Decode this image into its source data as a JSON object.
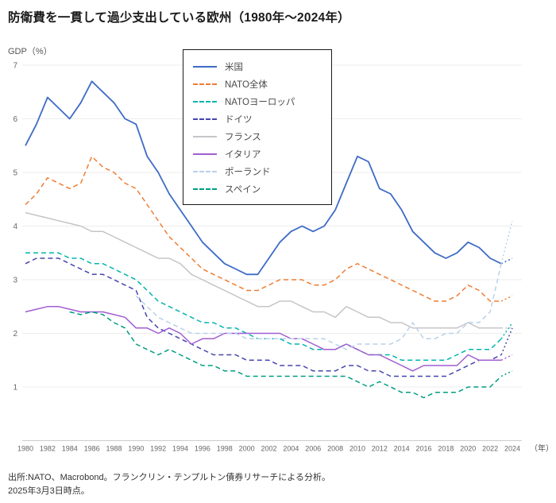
{
  "page": {
    "title": "防衛費を一貫して過少支出している欧州（1980年～2024年）",
    "y_axis_unit_label": "GDP（%）",
    "x_axis_unit_label": "（年）",
    "source_line1": "出所:NATO、Macrobond。フランクリン・テンプルトン債券リサーチによる分析。",
    "source_line2": "2025年3月3日時点。"
  },
  "chart_data": {
    "type": "line",
    "title": "防衛費を一貫して過少支出している欧州（1980年～2024年）",
    "xlabel": "（年）",
    "ylabel": "GDP（%）",
    "ylim": [
      0,
      7
    ],
    "grid": true,
    "legend_position": "top-center-box",
    "y_ticks": [
      1,
      2,
      3,
      4,
      5,
      6,
      7
    ],
    "x_ticks": [
      1980,
      1982,
      1984,
      1986,
      1988,
      1990,
      1992,
      1994,
      1996,
      1998,
      2000,
      2002,
      2004,
      2006,
      2008,
      2010,
      2012,
      2014,
      2016,
      2018,
      2020,
      2022,
      2024
    ],
    "x": [
      1980,
      1981,
      1982,
      1983,
      1984,
      1985,
      1986,
      1987,
      1988,
      1989,
      1990,
      1991,
      1992,
      1993,
      1994,
      1995,
      1996,
      1997,
      1998,
      1999,
      2000,
      2001,
      2002,
      2003,
      2004,
      2005,
      2006,
      2007,
      2008,
      2009,
      2010,
      2011,
      2012,
      2013,
      2014,
      2015,
      2016,
      2017,
      2018,
      2019,
      2020,
      2021,
      2022,
      2023,
      2024
    ],
    "note": "最終区間（2023年→2024年）は点線（推定値）",
    "series": [
      {
        "id": "us",
        "name": "米国",
        "color": "#3d6bc6",
        "style": "solid",
        "values": [
          5.5,
          5.9,
          6.4,
          6.2,
          6.0,
          6.3,
          6.7,
          6.5,
          6.3,
          6.0,
          5.9,
          5.3,
          5.0,
          4.6,
          4.3,
          4.0,
          3.7,
          3.5,
          3.3,
          3.2,
          3.1,
          3.1,
          3.4,
          3.7,
          3.9,
          4.0,
          3.9,
          4.0,
          4.3,
          4.8,
          5.3,
          5.2,
          4.7,
          4.6,
          4.3,
          3.9,
          3.7,
          3.5,
          3.4,
          3.5,
          3.7,
          3.6,
          3.4,
          3.3,
          3.4
        ]
      },
      {
        "id": "nato-total",
        "name": "NATO全体",
        "color": "#ee7d33",
        "style": "dashed",
        "values": [
          4.4,
          4.6,
          4.9,
          4.8,
          4.7,
          4.8,
          5.3,
          5.1,
          5.0,
          4.8,
          4.7,
          4.4,
          4.1,
          3.8,
          3.6,
          3.4,
          3.2,
          3.1,
          3.0,
          2.9,
          2.8,
          2.8,
          2.9,
          3.0,
          3.0,
          3.0,
          2.9,
          2.9,
          3.0,
          3.2,
          3.3,
          3.2,
          3.1,
          3.0,
          2.9,
          2.8,
          2.7,
          2.6,
          2.6,
          2.7,
          2.9,
          2.8,
          2.6,
          2.6,
          2.7
        ]
      },
      {
        "id": "nato-europe",
        "name": "NATOヨーロッパ",
        "color": "#00b5ad",
        "style": "dashed",
        "values": [
          3.5,
          3.5,
          3.5,
          3.5,
          3.4,
          3.4,
          3.3,
          3.3,
          3.2,
          3.1,
          3.0,
          2.8,
          2.6,
          2.5,
          2.4,
          2.3,
          2.2,
          2.2,
          2.1,
          2.1,
          2.0,
          1.9,
          1.9,
          1.9,
          1.8,
          1.8,
          1.7,
          1.7,
          1.7,
          1.8,
          1.7,
          1.6,
          1.6,
          1.6,
          1.5,
          1.5,
          1.5,
          1.5,
          1.5,
          1.6,
          1.7,
          1.7,
          1.7,
          1.9,
          2.2
        ]
      },
      {
        "id": "germany",
        "name": "ドイツ",
        "color": "#4745ae",
        "style": "dashed",
        "values": [
          3.3,
          3.4,
          3.4,
          3.4,
          3.3,
          3.2,
          3.1,
          3.1,
          3.0,
          2.9,
          2.8,
          2.3,
          2.1,
          2.0,
          1.9,
          1.8,
          1.7,
          1.6,
          1.6,
          1.6,
          1.5,
          1.5,
          1.5,
          1.4,
          1.4,
          1.4,
          1.3,
          1.3,
          1.3,
          1.4,
          1.4,
          1.3,
          1.3,
          1.2,
          1.2,
          1.2,
          1.2,
          1.2,
          1.2,
          1.3,
          1.4,
          1.5,
          1.5,
          1.6,
          2.1
        ]
      },
      {
        "id": "france",
        "name": "フランス",
        "color": "#c5c5c9",
        "style": "solid",
        "values": [
          4.25,
          4.2,
          4.15,
          4.1,
          4.05,
          4.0,
          3.9,
          3.9,
          3.8,
          3.7,
          3.6,
          3.5,
          3.4,
          3.4,
          3.3,
          3.1,
          3.0,
          2.9,
          2.8,
          2.7,
          2.6,
          2.5,
          2.5,
          2.6,
          2.6,
          2.5,
          2.4,
          2.4,
          2.3,
          2.5,
          2.4,
          2.3,
          2.3,
          2.2,
          2.2,
          2.1,
          2.1,
          2.1,
          2.1,
          2.1,
          2.2,
          2.1,
          2.1,
          2.1,
          2.1
        ]
      },
      {
        "id": "italy",
        "name": "イタリア",
        "color": "#a15ed2",
        "style": "solid",
        "values": [
          2.4,
          2.45,
          2.5,
          2.5,
          2.45,
          2.4,
          2.4,
          2.4,
          2.35,
          2.3,
          2.1,
          2.1,
          2.0,
          2.1,
          2.0,
          1.8,
          1.9,
          1.9,
          2.0,
          2.0,
          2.0,
          2.0,
          2.0,
          2.0,
          1.9,
          1.9,
          1.8,
          1.7,
          1.7,
          1.8,
          1.7,
          1.6,
          1.6,
          1.5,
          1.4,
          1.3,
          1.4,
          1.4,
          1.4,
          1.4,
          1.6,
          1.5,
          1.5,
          1.5,
          1.6
        ]
      },
      {
        "id": "poland",
        "name": "ポーランド",
        "color": "#b9d1ea",
        "style": "dashed",
        "values": [
          null,
          null,
          null,
          null,
          null,
          null,
          null,
          null,
          null,
          null,
          2.7,
          2.5,
          2.3,
          2.2,
          2.1,
          2.0,
          2.0,
          2.0,
          2.0,
          2.0,
          1.9,
          1.9,
          1.9,
          1.9,
          1.9,
          1.9,
          1.9,
          1.9,
          1.8,
          1.7,
          1.8,
          1.8,
          1.8,
          1.8,
          1.9,
          2.2,
          1.9,
          1.9,
          2.0,
          2.0,
          2.2,
          2.2,
          2.4,
          3.3,
          4.1
        ]
      },
      {
        "id": "spain",
        "name": "スペイン",
        "color": "#009e82",
        "style": "dashed",
        "values": [
          null,
          null,
          null,
          null,
          2.4,
          2.35,
          2.4,
          2.35,
          2.2,
          2.1,
          1.8,
          1.7,
          1.6,
          1.7,
          1.6,
          1.5,
          1.4,
          1.4,
          1.3,
          1.3,
          1.2,
          1.2,
          1.2,
          1.2,
          1.2,
          1.2,
          1.2,
          1.2,
          1.2,
          1.2,
          1.1,
          1.0,
          1.1,
          1.0,
          0.9,
          0.9,
          0.8,
          0.9,
          0.9,
          0.9,
          1.0,
          1.0,
          1.0,
          1.2,
          1.3
        ]
      }
    ]
  }
}
